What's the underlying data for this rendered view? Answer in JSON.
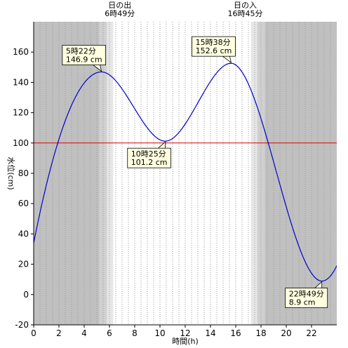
{
  "chart_data": {
    "type": "line",
    "title": "",
    "xlabel": "時間(h)",
    "ylabel": "水位(cm)",
    "xlim": [
      0,
      24
    ],
    "ylim": [
      -20,
      180
    ],
    "x_ticks": [
      0,
      2,
      4,
      6,
      8,
      10,
      12,
      14,
      16,
      18,
      20,
      22
    ],
    "y_ticks": [
      -20,
      0,
      20,
      40,
      60,
      80,
      100,
      120,
      140,
      160
    ],
    "grid": "vertical dotted",
    "colors": {
      "line": "#0000cc",
      "reference_line": "#dd0000",
      "night": "#c0c0c0",
      "twilight_dark": "#d0d0d0",
      "twilight_light": "#e6e6e6",
      "day": "#ffffff",
      "annotation_fill": "#ffffe0"
    },
    "reference_line_y": 100,
    "sunrise": {
      "heading": "日の出",
      "time": "6時49分",
      "x": 6.817
    },
    "sunset": {
      "heading": "日の入",
      "time": "16時45分",
      "x": 16.75
    },
    "shading": [
      {
        "from": 0,
        "to": 5.2,
        "kind": "night"
      },
      {
        "from": 5.2,
        "to": 5.8,
        "kind": "twilight_dark"
      },
      {
        "from": 5.8,
        "to": 6.3,
        "kind": "twilight_light"
      },
      {
        "from": 6.3,
        "to": 17.2,
        "kind": "day"
      },
      {
        "from": 17.2,
        "to": 17.7,
        "kind": "twilight_light"
      },
      {
        "from": 17.7,
        "to": 18.3,
        "kind": "twilight_dark"
      },
      {
        "from": 18.3,
        "to": 24,
        "kind": "night"
      }
    ],
    "extrema": [
      {
        "x": 5.367,
        "y": 146.9,
        "time": "5時22分",
        "value": "146.9 cm"
      },
      {
        "x": 10.417,
        "y": 101.2,
        "time": "10時25分",
        "value": "101.2 cm"
      },
      {
        "x": 15.633,
        "y": 152.6,
        "time": "15時38分",
        "value": "152.6 cm"
      },
      {
        "x": 22.817,
        "y": 8.9,
        "time": "22時49分",
        "value": "8.9 cm"
      }
    ],
    "series": [
      {
        "start": {
          "x": 0,
          "y": 34
        },
        "end": {
          "x": 24,
          "y": 19
        }
      }
    ]
  }
}
